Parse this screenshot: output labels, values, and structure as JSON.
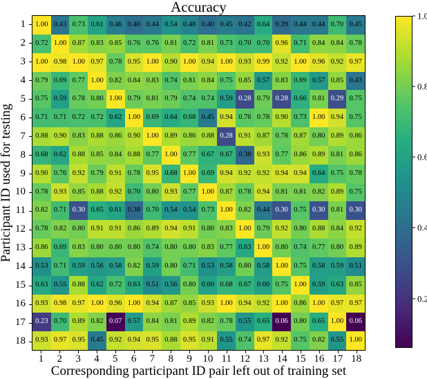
{
  "title": "Accuracy",
  "xlabel": "Corresponding participant ID pair left out of training set",
  "ylabel": "Participant ID used for testing",
  "chart_data": {
    "type": "heatmap",
    "title": "Accuracy",
    "xlabel": "Corresponding participant ID pair left out of training set",
    "ylabel": "Participant ID used for testing",
    "x_categories": [
      "1",
      "2",
      "3",
      "4",
      "5",
      "6",
      "7",
      "8",
      "9",
      "10",
      "11",
      "12",
      "13",
      "14",
      "15",
      "16",
      "17",
      "18"
    ],
    "y_categories": [
      "1",
      "2",
      "3",
      "4",
      "5",
      "6",
      "7",
      "8",
      "9",
      "10",
      "11",
      "12",
      "13",
      "14",
      "15",
      "16",
      "17",
      "18"
    ],
    "values": [
      [
        1.0,
        0.43,
        0.73,
        0.61,
        0.46,
        0.4,
        0.44,
        0.54,
        0.48,
        0.4,
        0.45,
        0.42,
        0.64,
        0.39,
        0.44,
        0.44,
        0.7,
        0.45
      ],
      [
        0.72,
        1.0,
        0.87,
        0.83,
        0.85,
        0.76,
        0.76,
        0.81,
        0.72,
        0.81,
        0.73,
        0.7,
        0.7,
        0.96,
        0.71,
        0.84,
        0.84,
        0.78
      ],
      [
        1.0,
        0.98,
        1.0,
        0.97,
        0.78,
        0.95,
        1.0,
        0.9,
        1.0,
        0.94,
        1.0,
        0.93,
        0.99,
        0.92,
        1.0,
        0.96,
        0.92,
        0.97
      ],
      [
        0.79,
        0.69,
        0.77,
        1.0,
        0.82,
        0.84,
        0.83,
        0.74,
        0.81,
        0.84,
        0.75,
        0.85,
        0.57,
        0.83,
        0.69,
        0.57,
        0.85,
        0.43
      ],
      [
        0.75,
        0.59,
        0.78,
        0.8,
        1.0,
        0.79,
        0.81,
        0.79,
        0.74,
        0.74,
        0.59,
        0.28,
        0.79,
        0.28,
        0.66,
        0.81,
        0.29,
        0.75
      ],
      [
        0.71,
        0.71,
        0.72,
        0.72,
        0.62,
        1.0,
        0.69,
        0.64,
        0.68,
        0.45,
        0.94,
        0.76,
        0.78,
        0.9,
        0.73,
        1.0,
        0.94,
        0.75
      ],
      [
        0.88,
        0.9,
        0.83,
        0.88,
        0.86,
        0.9,
        1.0,
        0.89,
        0.86,
        0.88,
        0.28,
        0.91,
        0.87,
        0.78,
        0.87,
        0.8,
        0.89,
        0.86
      ],
      [
        0.68,
        0.62,
        0.88,
        0.85,
        0.84,
        0.88,
        0.77,
        1.0,
        0.77,
        0.67,
        0.67,
        0.38,
        0.93,
        0.77,
        0.86,
        0.89,
        0.81,
        0.86
      ],
      [
        0.9,
        0.76,
        0.92,
        0.79,
        0.91,
        0.78,
        0.95,
        0.68,
        1.0,
        0.69,
        0.94,
        0.92,
        0.92,
        0.94,
        0.94,
        0.64,
        0.75,
        0.78
      ],
      [
        0.78,
        0.93,
        0.85,
        0.88,
        0.92,
        0.7,
        0.8,
        0.93,
        0.77,
        1.0,
        0.87,
        0.78,
        0.94,
        0.81,
        0.81,
        0.82,
        0.89,
        0.75
      ],
      [
        0.82,
        0.71,
        0.3,
        0.65,
        0.61,
        0.38,
        0.7,
        0.54,
        0.54,
        0.73,
        1.0,
        0.82,
        0.44,
        0.3,
        0.75,
        0.3,
        0.81,
        0.3
      ],
      [
        0.78,
        0.82,
        0.8,
        0.91,
        0.91,
        0.86,
        0.89,
        0.94,
        0.91,
        0.8,
        0.83,
        1.0,
        0.79,
        0.92,
        0.8,
        0.88,
        0.84,
        0.92
      ],
      [
        0.86,
        0.69,
        0.83,
        0.8,
        0.8,
        0.8,
        0.74,
        0.8,
        0.8,
        0.83,
        0.77,
        0.63,
        1.0,
        0.8,
        0.74,
        0.77,
        0.8,
        0.89
      ],
      [
        0.53,
        0.71,
        0.59,
        0.56,
        0.58,
        0.82,
        0.59,
        0.8,
        0.71,
        0.53,
        0.58,
        0.8,
        0.58,
        1.0,
        0.75,
        0.58,
        0.59,
        0.51
      ],
      [
        0.63,
        0.55,
        0.88,
        0.62,
        0.72,
        0.63,
        0.51,
        0.56,
        0.8,
        0.6,
        0.68,
        0.67,
        0.6,
        0.75,
        1.0,
        0.59,
        0.63,
        0.85
      ],
      [
        0.93,
        0.98,
        0.97,
        1.0,
        0.96,
        1.0,
        0.94,
        0.87,
        0.85,
        0.93,
        1.0,
        0.94,
        0.92,
        1.0,
        0.86,
        1.0,
        0.97,
        0.97
      ],
      [
        0.23,
        0.7,
        0.89,
        0.82,
        0.07,
        0.57,
        0.84,
        0.81,
        0.89,
        0.82,
        0.78,
        0.55,
        0.65,
        0.06,
        0.8,
        0.65,
        1.0,
        0.06
      ],
      [
        0.93,
        0.97,
        0.95,
        0.45,
        0.92,
        0.94,
        0.95,
        0.88,
        0.95,
        0.91,
        0.55,
        0.74,
        0.97,
        0.92,
        0.75,
        0.82,
        0.55,
        1.0
      ]
    ],
    "annotation_format": "0.00",
    "colormap": "viridis",
    "colormap_anchors": [
      [
        0.0,
        "#440154"
      ],
      [
        0.125,
        "#472c7a"
      ],
      [
        0.25,
        "#3b518b"
      ],
      [
        0.375,
        "#2c718e"
      ],
      [
        0.5,
        "#21908d"
      ],
      [
        0.625,
        "#27ad81"
      ],
      [
        0.75,
        "#5cc863"
      ],
      [
        0.875,
        "#aadc32"
      ],
      [
        1.0,
        "#fde725"
      ]
    ],
    "vmin": 0.06,
    "vmax": 1.0,
    "colorbar_ticks": [
      {
        "value": 1.0,
        "label": "1.0"
      },
      {
        "value": 0.8,
        "label": "0.8"
      },
      {
        "value": 0.6,
        "label": "0.6"
      },
      {
        "value": 0.4,
        "label": "0.4"
      },
      {
        "value": 0.2,
        "label": "0.2"
      }
    ],
    "legend_position": "right-colorbar",
    "grid": false,
    "colors": {
      "annotation_dark": "#000000",
      "annotation_light": "#ffffff",
      "axes_border": "#000000",
      "background": "#ffffff"
    },
    "light_text_threshold": 0.35
  }
}
